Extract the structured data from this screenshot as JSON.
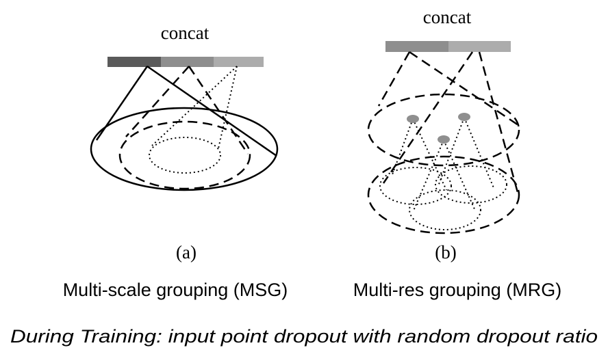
{
  "panel_a": {
    "concat_label": "concat",
    "letter": "(a)",
    "caption": "Multi-scale grouping (MSG)",
    "bar_colors": [
      "#5a5a5a",
      "#8e8e8e",
      "#acacac"
    ]
  },
  "panel_b": {
    "concat_label": "concat",
    "letter": "(b)",
    "caption": "Multi-res grouping (MRG)",
    "bar_colors": [
      "#8e8e8e",
      "#acacac"
    ],
    "point_color": "#8f8f8f"
  },
  "footer": {
    "note": "During Training: input point dropout with random dropout ratio"
  }
}
